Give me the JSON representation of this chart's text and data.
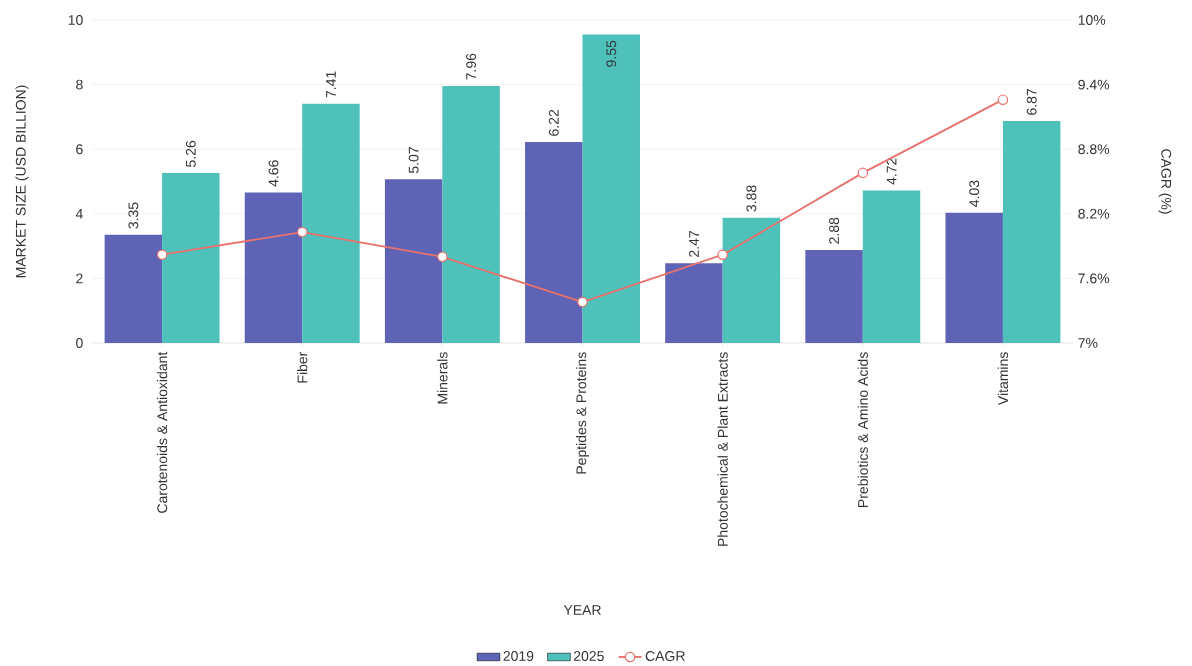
{
  "chart_data": {
    "type": "bar",
    "xlabel": "YEAR",
    "ylabel": "MARKET SIZE (USD BILLION)",
    "y2label": "CAGR (%)",
    "categories": [
      "Carotenoids & Antioxidant",
      "Fiber",
      "Minerals",
      "Peptides & Proteins",
      "Photochemical & Plant Extracts",
      "Prebiotics & Amino Acids",
      "Vitamins"
    ],
    "series": [
      {
        "name": "2019",
        "color": "#5f63b5",
        "values": [
          3.35,
          4.66,
          5.07,
          6.22,
          2.47,
          2.88,
          4.03
        ],
        "value_labels": [
          "3.35",
          "4.66",
          "5.07",
          "6.22",
          "2.47",
          "2.88",
          "4.03"
        ]
      },
      {
        "name": "2025",
        "color": "#4fc1bb",
        "values": [
          5.26,
          7.41,
          7.96,
          9.55,
          3.88,
          4.72,
          6.87
        ],
        "value_labels": [
          "5.26",
          "7.41",
          "7.96",
          "9.55",
          "3.88",
          "4.72",
          "6.87"
        ]
      },
      {
        "name": "CAGR",
        "type": "line",
        "axis": "y2",
        "color": "#e8716d",
        "marker": "circle",
        "values": [
          7.82,
          8.03,
          7.8,
          7.38,
          7.82,
          8.58,
          9.26
        ]
      }
    ],
    "ylim": [
      0,
      10
    ],
    "yticks": [
      0,
      2,
      4,
      6,
      8,
      10
    ],
    "y2lim": [
      7,
      10
    ],
    "y2ticks": [
      {
        "value": 7,
        "label": "7%"
      },
      {
        "value": 7.6,
        "label": "7.6%"
      },
      {
        "value": 8.2,
        "label": "8.2%"
      },
      {
        "value": 8.8,
        "label": "8.8%"
      },
      {
        "value": 9.4,
        "label": "9.4%"
      },
      {
        "value": 10,
        "label": "10%"
      }
    ],
    "grid": "y",
    "legend": "bottom"
  }
}
